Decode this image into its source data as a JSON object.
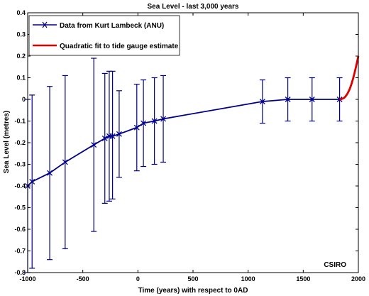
{
  "chart_data": {
    "type": "line",
    "title": "Sea Level - last 3,000 years",
    "xlabel": "Time (years) with respect to 0AD",
    "ylabel": "Sea Level (metres)",
    "xlim": [
      -1000,
      2000
    ],
    "ylim": [
      -0.8,
      0.4
    ],
    "x_ticks": [
      -1000,
      -500,
      0,
      500,
      1000,
      1500,
      2000
    ],
    "y_ticks": [
      -0.8,
      -0.7,
      -0.6,
      -0.5,
      -0.4,
      -0.3,
      -0.2,
      -0.1,
      0,
      0.1,
      0.2,
      0.3,
      0.4
    ],
    "x_tick_labels": [
      "-1000",
      "-500",
      "0",
      "500",
      "1000",
      "1500",
      "2000"
    ],
    "y_tick_labels": [
      "-0.8",
      "-0.7",
      "-0.6",
      "-0.5",
      "-0.4",
      "-0.3",
      "-0.2",
      "-0.1",
      "0",
      "0.1",
      "0.2",
      "0.3",
      "0.4"
    ],
    "grid": false,
    "legend_position": "top-left",
    "annotation": "CSIRO",
    "series": [
      {
        "name": "Data from Kurt Lambeck (ANU)",
        "color": "#00008B",
        "marker": "x",
        "points": [
          {
            "x": -1000,
            "y": -0.4,
            "low": -0.8,
            "high": 0.0
          },
          {
            "x": -960,
            "y": -0.38,
            "low": -0.78,
            "high": 0.02
          },
          {
            "x": -800,
            "y": -0.34,
            "low": -0.74,
            "high": 0.06
          },
          {
            "x": -660,
            "y": -0.29,
            "low": -0.69,
            "high": 0.11
          },
          {
            "x": -400,
            "y": -0.21,
            "low": -0.61,
            "high": 0.19
          },
          {
            "x": -300,
            "y": -0.18,
            "low": -0.48,
            "high": 0.12
          },
          {
            "x": -260,
            "y": -0.17,
            "low": -0.47,
            "high": 0.13
          },
          {
            "x": -230,
            "y": -0.17,
            "low": -0.46,
            "high": 0.13
          },
          {
            "x": -170,
            "y": -0.16,
            "low": -0.36,
            "high": 0.04
          },
          {
            "x": -10,
            "y": -0.13,
            "low": -0.33,
            "high": 0.07
          },
          {
            "x": 50,
            "y": -0.11,
            "low": -0.31,
            "high": 0.09
          },
          {
            "x": 150,
            "y": -0.1,
            "low": -0.3,
            "high": 0.1
          },
          {
            "x": 230,
            "y": -0.09,
            "low": -0.29,
            "high": 0.11
          },
          {
            "x": 1130,
            "y": -0.01,
            "low": -0.11,
            "high": 0.09
          },
          {
            "x": 1360,
            "y": 0.0,
            "low": -0.1,
            "high": 0.1
          },
          {
            "x": 1580,
            "y": 0.0,
            "low": -0.1,
            "high": 0.1
          },
          {
            "x": 1830,
            "y": 0.0,
            "low": -0.1,
            "high": 0.1
          }
        ]
      },
      {
        "name": "Quadratic fit to tide gauge estimate",
        "color": "#DD0000",
        "x": [
          1830,
          1845,
          1860,
          1875,
          1890,
          1905,
          1920,
          1935,
          1950,
          1965,
          1980,
          2000
        ],
        "y": [
          0.0,
          0.001,
          0.004,
          0.009,
          0.018,
          0.03,
          0.046,
          0.067,
          0.092,
          0.121,
          0.154,
          0.2
        ]
      }
    ]
  }
}
